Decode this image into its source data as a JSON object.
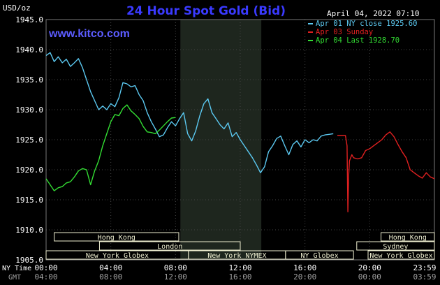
{
  "header": {
    "units": "USD/oz",
    "title": "24 Hour Spot Gold (Bid)",
    "timestamp": "April 04, 2022 07:10",
    "website": "www.kitco.com"
  },
  "legend": [
    {
      "label": "Apr 01 NY close 1925.60",
      "color": "#5bc8f0"
    },
    {
      "label": "Apr 03 Sunday",
      "color": "#e02020"
    },
    {
      "label": "Apr 04 Last 1928.70",
      "color": "#33dd33"
    }
  ],
  "axes": {
    "y_ticks": [
      "1945.0",
      "1940.0",
      "1935.0",
      "1930.0",
      "1925.0",
      "1920.0",
      "1915.0",
      "1910.0",
      "1905.0"
    ],
    "x_label_ny": "NY Time",
    "x_label_gmt": "GMT",
    "ny_ticks": [
      "00:00",
      "04:00",
      "08:00",
      "12:00",
      "16:00",
      "20:00",
      "23:59"
    ],
    "gmt_ticks": [
      "04:00",
      "08:00",
      "12:00",
      "16:00",
      "20:00",
      "00:00",
      "03:59"
    ]
  },
  "sessions": [
    {
      "label": "Hong Kong",
      "row": 0,
      "start": 0.5,
      "end": 8.2
    },
    {
      "label": "Hong Kong",
      "row": 0,
      "start": 20.7,
      "end": 24
    },
    {
      "label": "London",
      "row": 1,
      "start": 3.3,
      "end": 12.0
    },
    {
      "label": "Sydney",
      "row": 1,
      "start": 19.2,
      "end": 24
    },
    {
      "label": "New York Globex",
      "row": 2,
      "start": 0,
      "end": 8.8
    },
    {
      "label": "New York NYMEX",
      "row": 2,
      "start": 8.8,
      "end": 14.8
    },
    {
      "label": "NY Globex",
      "row": 2,
      "start": 14.8,
      "end": 19.0
    },
    {
      "label": "New York Globex",
      "row": 2,
      "start": 19.9,
      "end": 24
    }
  ],
  "colors": {
    "background": "#000000",
    "plot": "#000000",
    "shade": "#1e261e",
    "grid": "#444444",
    "title": "#3a3aff",
    "website": "#5c5cff",
    "text": "#ffffff",
    "gmt_text": "#a0a0a0",
    "session_bg": "#eeeed0",
    "session_text": "#000000"
  },
  "chart_data": {
    "type": "line",
    "ylim": [
      1905,
      1945
    ],
    "xlim": [
      0,
      24
    ],
    "shaded_period": [
      8.3,
      13.3
    ],
    "series": [
      {
        "name": "Apr 01 NY close 1925.60",
        "color": "#5bc8f0",
        "x": [
          0,
          0.25,
          0.5,
          0.75,
          1,
          1.25,
          1.5,
          1.75,
          2,
          2.25,
          2.5,
          2.75,
          3,
          3.25,
          3.5,
          3.75,
          4,
          4.25,
          4.5,
          4.75,
          5,
          5.25,
          5.5,
          5.75,
          6,
          6.25,
          6.5,
          6.75,
          7,
          7.25,
          7.5,
          7.75,
          8,
          8.25,
          8.5,
          8.75,
          9,
          9.25,
          9.5,
          9.75,
          10,
          10.25,
          10.5,
          10.75,
          11,
          11.25,
          11.5,
          11.75,
          12,
          12.25,
          12.5,
          12.75,
          13,
          13.25,
          13.5,
          13.75,
          14,
          14.25,
          14.5,
          14.75,
          15,
          15.25,
          15.5,
          15.75,
          16,
          16.25,
          16.5,
          16.75,
          17,
          17.25,
          17.5,
          17.75
        ],
        "y": [
          1939,
          1939.5,
          1938,
          1938.8,
          1937.8,
          1938.4,
          1937.2,
          1937.8,
          1938.5,
          1937,
          1935,
          1933,
          1931.5,
          1930,
          1930.6,
          1930,
          1931,
          1930.5,
          1932,
          1934.5,
          1934.3,
          1933.8,
          1934,
          1932.5,
          1931.5,
          1929.5,
          1928,
          1926.8,
          1925.5,
          1925.8,
          1927,
          1928,
          1927.3,
          1928.5,
          1929.5,
          1926,
          1924.8,
          1926.5,
          1929,
          1931,
          1931.8,
          1929.5,
          1928.5,
          1927.5,
          1926.8,
          1927.8,
          1925.5,
          1926.2,
          1925,
          1924,
          1923,
          1922,
          1920.8,
          1919.5,
          1920.5,
          1923,
          1924,
          1925.2,
          1925.6,
          1924,
          1922.5,
          1924.2,
          1924.8,
          1923.8,
          1925,
          1924.5,
          1925,
          1924.8,
          1925.6,
          1925.8,
          1925.9,
          1926
        ]
      },
      {
        "name": "Apr 03 Sunday",
        "color": "#e02020",
        "x": [
          18,
          18.25,
          18.5,
          18.6,
          18.65,
          18.7,
          18.75,
          18.9,
          19,
          19.25,
          19.5,
          19.75,
          20,
          20.25,
          20.5,
          20.75,
          21,
          21.25,
          21.5,
          21.75,
          22,
          22.25,
          22.5,
          22.75,
          23,
          23.25,
          23.5,
          23.75,
          24
        ],
        "y": [
          1925.7,
          1925.7,
          1925.7,
          1924,
          1913,
          1919,
          1921.5,
          1922.5,
          1922,
          1921.8,
          1922,
          1923.2,
          1923.5,
          1924,
          1924.5,
          1925,
          1925.8,
          1926.3,
          1925.5,
          1924.2,
          1923,
          1922,
          1920,
          1919.5,
          1919,
          1918.6,
          1919.5,
          1918.8,
          1918.5
        ]
      },
      {
        "name": "Apr 04 Last 1928.70",
        "color": "#33dd33",
        "x": [
          0,
          0.25,
          0.5,
          0.75,
          1,
          1.25,
          1.5,
          1.75,
          2,
          2.25,
          2.5,
          2.75,
          3,
          3.25,
          3.5,
          3.75,
          4,
          4.25,
          4.5,
          4.75,
          5,
          5.25,
          5.5,
          5.75,
          6,
          6.25,
          6.5,
          6.75,
          7,
          7.25,
          7.5,
          7.75,
          8
        ],
        "y": [
          1918.5,
          1917.5,
          1916.5,
          1917,
          1917.2,
          1917.8,
          1918,
          1918.8,
          1919.8,
          1920.2,
          1920,
          1917.5,
          1919.8,
          1921.5,
          1924,
          1926,
          1928,
          1929.2,
          1929,
          1930.2,
          1930.8,
          1929.8,
          1929.2,
          1928.5,
          1927.2,
          1926.3,
          1926.2,
          1926,
          1926.6,
          1927.3,
          1928,
          1928.6,
          1928.7
        ]
      }
    ]
  }
}
